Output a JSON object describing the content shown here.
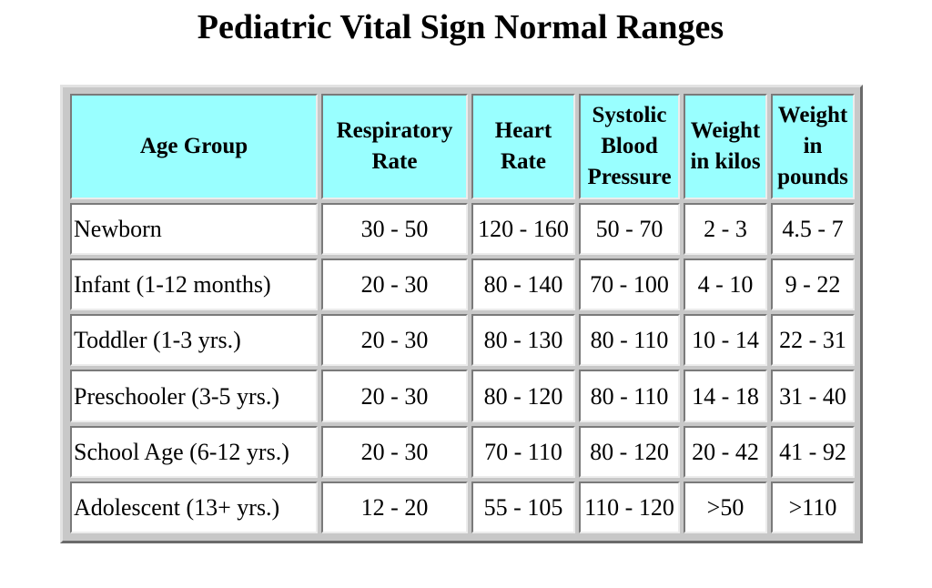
{
  "title": "Pediatric Vital Sign Normal Ranges",
  "table": {
    "headers": [
      "Age Group",
      "Respiratory Rate",
      "Heart Rate",
      "Systolic Blood Pressure",
      "Weight in kilos",
      "Weight in pounds"
    ],
    "rows": [
      [
        "Newborn",
        "30 - 50",
        "120 - 160",
        "50 - 70",
        "2 - 3",
        "4.5 - 7"
      ],
      [
        "Infant (1-12 months)",
        "20 - 30",
        "80 - 140",
        "70 - 100",
        "4 - 10",
        "9 - 22"
      ],
      [
        "Toddler (1-3 yrs.)",
        "20 - 30",
        "80 - 130",
        "80 - 110",
        "10 - 14",
        "22 - 31"
      ],
      [
        "Preschooler (3-5 yrs.)",
        "20 - 30",
        "80 - 120",
        "80 - 110",
        "14 - 18",
        "31 - 40"
      ],
      [
        "School Age (6-12 yrs.)",
        "20 - 30",
        "70 - 110",
        "80 - 120",
        "20 - 42",
        "41 - 92"
      ],
      [
        "Adolescent (13+ yrs.)",
        "12 - 20",
        "55 - 105",
        "110 - 120",
        ">50",
        ">110"
      ]
    ]
  },
  "colors": {
    "header_background": "#99ffff",
    "cell_background": "#ffffff",
    "frame": "#c8c8c8"
  }
}
